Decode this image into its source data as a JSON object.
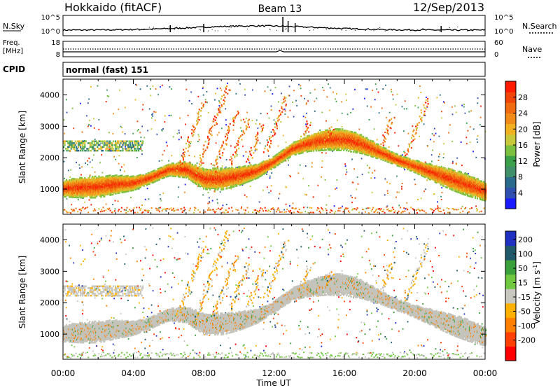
{
  "header": {
    "station": "Hokkaido (fitACF)",
    "beam": "Beam 13",
    "date": "12/Sep/2013"
  },
  "strips": {
    "nsky_label": "N.Sky",
    "nsearch_label": "N.Search",
    "noise_ticks_left": [
      "10^5",
      "10^0"
    ],
    "noise_ticks_right": [
      "10^5",
      "10^0"
    ],
    "freq_label_line1": "Freq.",
    "freq_label_line2": "[MHz]",
    "freq_ticks": [
      "18",
      "8"
    ],
    "nave_label": "Nave",
    "nave_ticks": [
      "60",
      "0"
    ],
    "cpid_label": "CPID",
    "cpid_text": "normal (fast) 151"
  },
  "chart_data": [
    {
      "type": "heatmap",
      "quantity": "Power",
      "xlabel": "Time UT",
      "ylabel": "Slant Range [km]",
      "xlim": [
        "00:00",
        "24:00"
      ],
      "ylim": [
        200,
        4500
      ],
      "xticks": [
        "00:00",
        "04:00",
        "08:00",
        "12:00",
        "16:00",
        "20:00",
        "00:00"
      ],
      "yticks": [
        1000,
        2000,
        3000,
        4000
      ],
      "colorbar": {
        "label": "Power [dB]",
        "range": [
          0,
          32
        ],
        "ticks": [
          4,
          8,
          12,
          16,
          20,
          24,
          28
        ],
        "colors": [
          "#1a1aff",
          "#3050b0",
          "#2a6a8c",
          "#3f8f6a",
          "#3aa04a",
          "#7cc040",
          "#c8c83a",
          "#f0b020",
          "#f08a18",
          "#f06a10",
          "#f04408",
          "#ff1a00"
        ]
      },
      "main_trace": [
        [
          0,
          1050
        ],
        [
          1,
          1080
        ],
        [
          2,
          1100
        ],
        [
          3,
          1180
        ],
        [
          4,
          1220
        ],
        [
          5,
          1400
        ],
        [
          6,
          1650
        ],
        [
          7,
          1650
        ],
        [
          8,
          1350
        ],
        [
          9,
          1350
        ],
        [
          10,
          1450
        ],
        [
          11,
          1600
        ],
        [
          12,
          1900
        ],
        [
          13,
          2300
        ],
        [
          14,
          2500
        ],
        [
          15,
          2600
        ],
        [
          16,
          2600
        ],
        [
          17,
          2450
        ],
        [
          18,
          2200
        ],
        [
          19,
          1950
        ],
        [
          20,
          1750
        ],
        [
          21,
          1550
        ],
        [
          22,
          1350
        ],
        [
          23,
          1150
        ],
        [
          24,
          950
        ]
      ]
    },
    {
      "type": "heatmap",
      "quantity": "Velocity",
      "xlabel": "Time UT",
      "ylabel": "Slant Range [km]",
      "xlim": [
        "00:00",
        "24:00"
      ],
      "ylim": [
        200,
        4500
      ],
      "xticks": [
        "00:00",
        "04:00",
        "08:00",
        "12:00",
        "16:00",
        "20:00",
        "00:00"
      ],
      "yticks": [
        1000,
        2000,
        3000,
        4000
      ],
      "colorbar": {
        "label": "Velocity [m s^-1]",
        "range": [
          -250,
          250
        ],
        "ticks": [
          200,
          100,
          50,
          15,
          -15,
          -50,
          -100,
          -200
        ],
        "colors": [
          "#ff0000",
          "#ff4000",
          "#ff8000",
          "#ffb000",
          "#c8c8c0",
          "#70c840",
          "#3aa03a",
          "#205a6a",
          "#2030c0"
        ]
      }
    }
  ]
}
